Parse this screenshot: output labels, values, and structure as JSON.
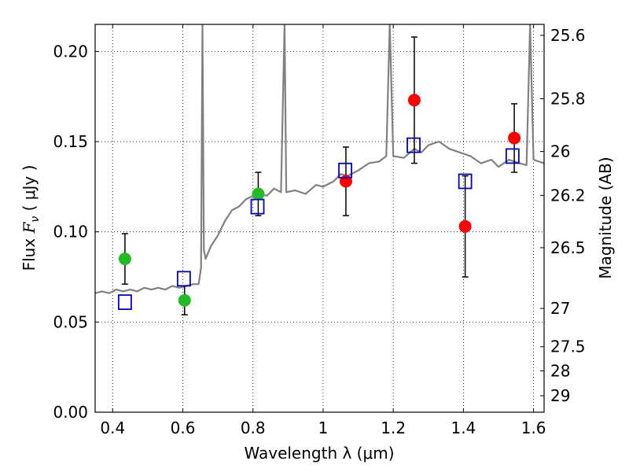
{
  "chart_data": {
    "type": "scatter",
    "xlabel": "Wavelength  λ (μm)",
    "ylabel_prefix": "Flux  ",
    "ylabel_symbol": "F",
    "ylabel_sub": "ν",
    "ylabel_suffix": "  ( μJy )",
    "y2label": "Magnitude (AB)",
    "xlim": [
      0.35,
      1.63
    ],
    "ylim": [
      0.0,
      0.215
    ],
    "grid": true,
    "x_ticks": [
      0.4,
      0.6,
      0.8,
      1.0,
      1.2,
      1.4,
      1.6
    ],
    "x_tick_labels": [
      "0.4",
      "0.6",
      "0.8",
      "1",
      "1.2",
      "1.4",
      "1.6"
    ],
    "y_ticks": [
      0.0,
      0.05,
      0.1,
      0.15,
      0.2
    ],
    "y_tick_labels": [
      "0.00",
      "0.05",
      "0.10",
      "0.15",
      "0.20"
    ],
    "y2_ticks": [
      {
        "mag": 25.6,
        "label": "25.6"
      },
      {
        "mag": 25.8,
        "label": "25.8"
      },
      {
        "mag": 26.0,
        "label": "26"
      },
      {
        "mag": 26.2,
        "label": "26.2"
      },
      {
        "mag": 26.5,
        "label": "26.5"
      },
      {
        "mag": 27.0,
        "label": "27"
      },
      {
        "mag": 27.5,
        "label": "27.5"
      },
      {
        "mag": 28.0,
        "label": "28"
      },
      {
        "mag": 29.0,
        "label": "29"
      }
    ],
    "colors": {
      "model": "#808080",
      "green": "#22bb22",
      "red": "#ff0000",
      "box": "#0000cc",
      "err": "#000000"
    },
    "series": [
      {
        "name": "model_spectrum",
        "type": "line",
        "points": [
          [
            0.35,
            0.066
          ],
          [
            0.37,
            0.067
          ],
          [
            0.39,
            0.066
          ],
          [
            0.41,
            0.068
          ],
          [
            0.43,
            0.067
          ],
          [
            0.45,
            0.068
          ],
          [
            0.47,
            0.067
          ],
          [
            0.49,
            0.069
          ],
          [
            0.51,
            0.068
          ],
          [
            0.53,
            0.069
          ],
          [
            0.55,
            0.068
          ],
          [
            0.57,
            0.07
          ],
          [
            0.59,
            0.069
          ],
          [
            0.61,
            0.07
          ],
          [
            0.63,
            0.071
          ],
          [
            0.645,
            0.071
          ],
          [
            0.652,
            0.08
          ],
          [
            0.656,
            0.215
          ],
          [
            0.66,
            0.09
          ],
          [
            0.665,
            0.085
          ],
          [
            0.68,
            0.092
          ],
          [
            0.7,
            0.098
          ],
          [
            0.72,
            0.106
          ],
          [
            0.74,
            0.112
          ],
          [
            0.76,
            0.114
          ],
          [
            0.78,
            0.118
          ],
          [
            0.8,
            0.12
          ],
          [
            0.82,
            0.121
          ],
          [
            0.84,
            0.12
          ],
          [
            0.86,
            0.124
          ],
          [
            0.88,
            0.122
          ],
          [
            0.89,
            0.215
          ],
          [
            0.895,
            0.122
          ],
          [
            0.92,
            0.123
          ],
          [
            0.95,
            0.121
          ],
          [
            0.98,
            0.126
          ],
          [
            1.0,
            0.125
          ],
          [
            1.03,
            0.128
          ],
          [
            1.05,
            0.132
          ],
          [
            1.07,
            0.131
          ],
          [
            1.1,
            0.134
          ],
          [
            1.13,
            0.138
          ],
          [
            1.16,
            0.139
          ],
          [
            1.18,
            0.142
          ],
          [
            1.19,
            0.215
          ],
          [
            1.2,
            0.142
          ],
          [
            1.23,
            0.141
          ],
          [
            1.26,
            0.146
          ],
          [
            1.28,
            0.144
          ],
          [
            1.3,
            0.148
          ],
          [
            1.33,
            0.15
          ],
          [
            1.36,
            0.146
          ],
          [
            1.39,
            0.144
          ],
          [
            1.42,
            0.142
          ],
          [
            1.45,
            0.138
          ],
          [
            1.48,
            0.14
          ],
          [
            1.5,
            0.136
          ],
          [
            1.53,
            0.14
          ],
          [
            1.56,
            0.138
          ],
          [
            1.58,
            0.137
          ],
          [
            1.59,
            0.215
          ],
          [
            1.6,
            0.14
          ],
          [
            1.63,
            0.138
          ]
        ]
      },
      {
        "name": "observed_optical",
        "type": "scatter",
        "marker": "circle",
        "color": "green",
        "points": [
          {
            "x": 0.435,
            "y": 0.085,
            "err": 0.014
          },
          {
            "x": 0.605,
            "y": 0.062,
            "err": 0.008
          },
          {
            "x": 0.815,
            "y": 0.121,
            "err": 0.012
          }
        ]
      },
      {
        "name": "observed_nir",
        "type": "scatter",
        "marker": "circle",
        "color": "red",
        "points": [
          {
            "x": 1.065,
            "y": 0.128,
            "err": 0.019
          },
          {
            "x": 1.26,
            "y": 0.173,
            "err": 0.035
          },
          {
            "x": 1.405,
            "y": 0.103,
            "err": 0.028
          },
          {
            "x": 1.545,
            "y": 0.152,
            "err": 0.019
          }
        ]
      },
      {
        "name": "model_photometry",
        "type": "scatter",
        "marker": "open-square",
        "color": "box",
        "points": [
          {
            "x": 0.435,
            "y": 0.061
          },
          {
            "x": 0.603,
            "y": 0.074
          },
          {
            "x": 0.813,
            "y": 0.114
          },
          {
            "x": 1.063,
            "y": 0.134
          },
          {
            "x": 1.258,
            "y": 0.148
          },
          {
            "x": 1.405,
            "y": 0.128
          },
          {
            "x": 1.54,
            "y": 0.142
          }
        ]
      }
    ]
  }
}
